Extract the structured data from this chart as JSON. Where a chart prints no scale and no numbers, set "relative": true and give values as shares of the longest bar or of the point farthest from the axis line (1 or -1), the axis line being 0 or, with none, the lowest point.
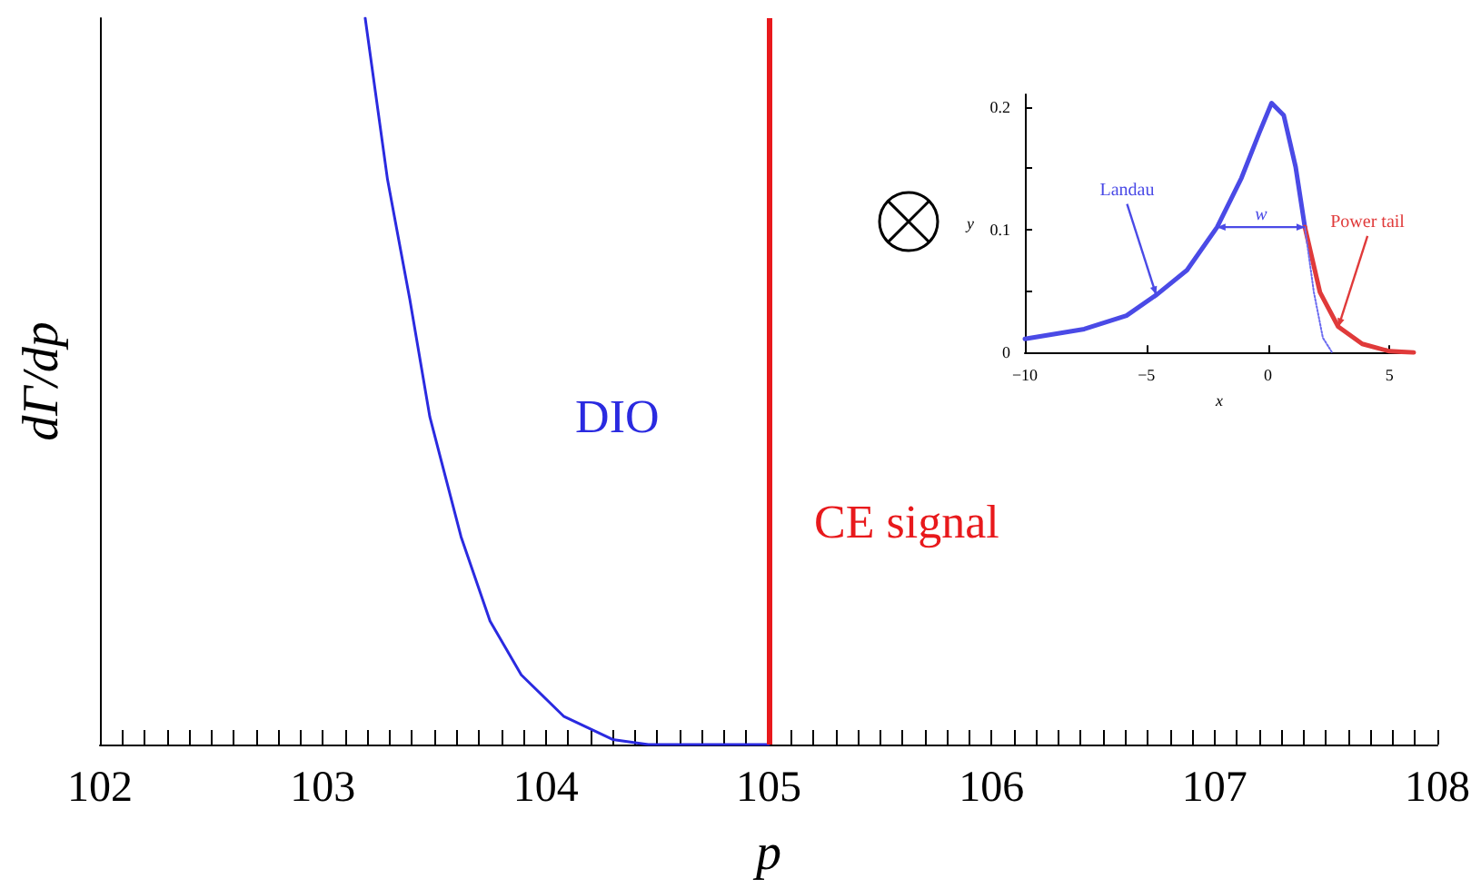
{
  "chart_data": [
    {
      "type": "line",
      "xlabel": "p",
      "ylabel": "dΓ/dp",
      "relative": true,
      "xlim": [
        102,
        108
      ],
      "xticks": [
        102,
        {
          "value": 102.1,
          "label": null
        },
        {
          "value": 102.2,
          "label": null
        },
        {
          "value": 102.3,
          "label": null
        },
        {
          "value": 102.4,
          "label": null
        },
        {
          "value": 102.5,
          "label": null
        },
        {
          "value": 102.6,
          "label": null
        },
        {
          "value": 102.7,
          "label": null
        },
        {
          "value": 102.8,
          "label": null
        },
        {
          "value": 102.9,
          "label": null
        },
        103,
        {
          "value": 103.1,
          "label": null
        },
        {
          "value": 103.2,
          "label": null
        },
        {
          "value": 103.3,
          "label": null
        },
        {
          "value": 103.4,
          "label": null
        },
        {
          "value": 103.5,
          "label": null
        },
        {
          "value": 103.6,
          "label": null
        },
        {
          "value": 103.7,
          "label": null
        },
        {
          "value": 103.8,
          "label": null
        },
        {
          "value": 103.9,
          "label": null
        },
        104,
        {
          "value": 104.1,
          "label": null
        },
        {
          "value": 104.2,
          "label": null
        },
        {
          "value": 104.3,
          "label": null
        },
        {
          "value": 104.4,
          "label": null
        },
        {
          "value": 104.5,
          "label": null
        },
        {
          "value": 104.6,
          "label": null
        },
        {
          "value": 104.7,
          "label": null
        },
        {
          "value": 104.8,
          "label": null
        },
        {
          "value": 104.9,
          "label": null
        },
        105,
        {
          "value": 105.1,
          "label": null
        },
        {
          "value": 105.2,
          "label": null
        },
        {
          "value": 105.3,
          "label": null
        },
        {
          "value": 105.4,
          "label": null
        },
        {
          "value": 105.5,
          "label": null
        },
        {
          "value": 105.6,
          "label": null
        },
        {
          "value": 105.7,
          "label": null
        },
        {
          "value": 105.8,
          "label": null
        },
        {
          "value": 105.9,
          "label": null
        },
        106,
        {
          "value": 106.1,
          "label": null
        },
        {
          "value": 106.2,
          "label": null
        },
        {
          "value": 106.3,
          "label": null
        },
        {
          "value": 106.4,
          "label": null
        },
        {
          "value": 106.5,
          "label": null
        },
        {
          "value": 106.6,
          "label": null
        },
        {
          "value": 106.7,
          "label": null
        },
        {
          "value": 106.8,
          "label": null
        },
        {
          "value": 106.9,
          "label": null
        },
        107,
        {
          "value": 107.1,
          "label": null
        },
        {
          "value": 107.2,
          "label": null
        },
        {
          "value": 107.3,
          "label": null
        },
        {
          "value": 107.4,
          "label": null
        },
        {
          "value": 107.5,
          "label": null
        },
        {
          "value": 107.6,
          "label": null
        },
        {
          "value": 107.7,
          "label": null
        },
        {
          "value": 107.8,
          "label": null
        },
        {
          "value": 107.9,
          "label": null
        },
        108
      ],
      "series": [
        {
          "name": "DIO",
          "color": "#2a2ae0",
          "x": [
            103.19,
            103.29,
            103.39,
            103.48,
            103.62,
            103.75,
            103.89,
            104.08,
            104.3,
            104.46,
            104.7,
            105
          ],
          "values": [
            1,
            0.778,
            0.613,
            0.451,
            0.286,
            0.17,
            0.096,
            0.039,
            0.007,
            0,
            0,
            0
          ]
        }
      ],
      "ref_lines": [
        {
          "axis": "x",
          "value": 105,
          "label": "CE signal",
          "color": "#e8191c"
        }
      ]
    },
    {
      "type": "line",
      "xlabel": "x",
      "ylabel": "y",
      "xlim": [
        -10,
        6
      ],
      "ylim": [
        0,
        0.21
      ],
      "xticks": [
        -10,
        -5,
        0,
        5
      ],
      "yticks": [
        0,
        {
          "value": 0.05,
          "label": null
        },
        0.1,
        {
          "value": 0.15,
          "label": null
        },
        0.2
      ],
      "series": [
        {
          "color": "#4a4ae6",
          "x": [
            -10,
            -7.56,
            -5.82,
            -4.58,
            -3.33,
            -2.09,
            -1.09,
            -0.35,
            0.15,
            0.65,
            1.14,
            1.52
          ],
          "values": [
            0.011,
            0.019,
            0.03,
            0.047,
            0.067,
            0.102,
            0.142,
            0.179,
            0.203,
            0.193,
            0.151,
            0.102
          ]
        },
        {
          "color": "#e03a3a",
          "x": [
            1.52,
            2.14,
            2.89,
            3.88,
            5,
            6
          ],
          "values": [
            0.102,
            0.049,
            0.021,
            0.007,
            0.001,
            0
          ]
        },
        {
          "color": "#6a6af0",
          "line_style": "dotted",
          "x": [
            1.52,
            1.89,
            2.26,
            2.64
          ],
          "values": [
            0.102,
            0.049,
            0.012,
            0
          ]
        }
      ],
      "annotations": [
        {
          "text": "Landau",
          "x": -4.6,
          "y": 0.047
        },
        {
          "text": "w",
          "x": -2.09,
          "y": 0.102
        },
        {
          "text": "Power tail",
          "x": 2.9,
          "y": 0.021
        }
      ]
    }
  ]
}
